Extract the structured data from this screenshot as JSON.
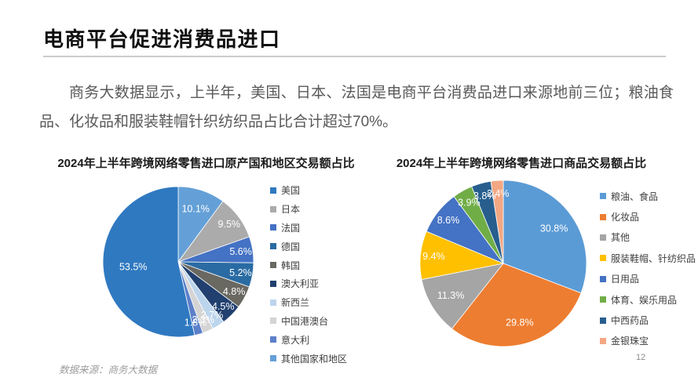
{
  "header": {
    "title": "电商平台促进消费品进口"
  },
  "body": {
    "paragraph": "商务大数据显示，上半年，美国、日本、法国是电商平台消费品进口来源地前三位；粮油食品、化妆品和服装鞋帽针织纺织品占比合计超过70%。"
  },
  "chart_data": [
    {
      "type": "pie",
      "title": "2024年上半年跨境网络零售进口原产国和地区交易额占比",
      "legend_position": "right",
      "slices": [
        {
          "label": "美国",
          "value": 53.5,
          "color": "#2F79C1"
        },
        {
          "label": "日本",
          "value": 9.5,
          "color": "#ABABAB"
        },
        {
          "label": "法国",
          "value": 5.6,
          "color": "#4472C4"
        },
        {
          "label": "德国",
          "value": 5.2,
          "color": "#2A6BA3"
        },
        {
          "label": "韩国",
          "value": 4.8,
          "color": "#696861"
        },
        {
          "label": "澳大利亚",
          "value": 4.5,
          "color": "#21406F"
        },
        {
          "label": "新西兰",
          "value": 2.7,
          "color": "#BCD5EC"
        },
        {
          "label": "中国港澳台",
          "value": 2.3,
          "color": "#D4D4D4"
        },
        {
          "label": "意大利",
          "value": 1.8,
          "color": "#5C80C9"
        },
        {
          "label": "其他国家和地区",
          "value": 10.1,
          "color": "#64A0D7"
        }
      ],
      "clockwise_from_top": [
        "其他国家和地区",
        "日本",
        "法国",
        "德国",
        "韩国",
        "澳大利亚",
        "新西兰",
        "中国港澳台",
        "意大利",
        "美国"
      ]
    },
    {
      "type": "pie",
      "title": "2024年上半年跨境网络零售进口商品交易额占比",
      "legend_position": "right",
      "slices": [
        {
          "label": "粮油、食品",
          "value": 30.8,
          "color": "#5B9BD5"
        },
        {
          "label": "化妆品",
          "value": 29.8,
          "color": "#ED7D31"
        },
        {
          "label": "其他",
          "value": 11.3,
          "color": "#A5A5A5"
        },
        {
          "label": "服装鞋帽、针纺织品",
          "value": 9.4,
          "color": "#FFC000"
        },
        {
          "label": "日用品",
          "value": 8.6,
          "color": "#4472C4"
        },
        {
          "label": "体育、娱乐用品",
          "value": 3.9,
          "color": "#70AD47"
        },
        {
          "label": "中西药品",
          "value": 3.8,
          "color": "#275E8E"
        },
        {
          "label": "金银珠宝",
          "value": 2.4,
          "color": "#F3A783"
        }
      ],
      "clockwise_from_top": [
        "粮油、食品",
        "化妆品",
        "其他",
        "服装鞋帽、针纺织品",
        "日用品",
        "体育、娱乐用品",
        "中西药品",
        "金银珠宝"
      ]
    }
  ],
  "footer": {
    "source": "数据来源：商务大数据",
    "page_number": "12"
  }
}
